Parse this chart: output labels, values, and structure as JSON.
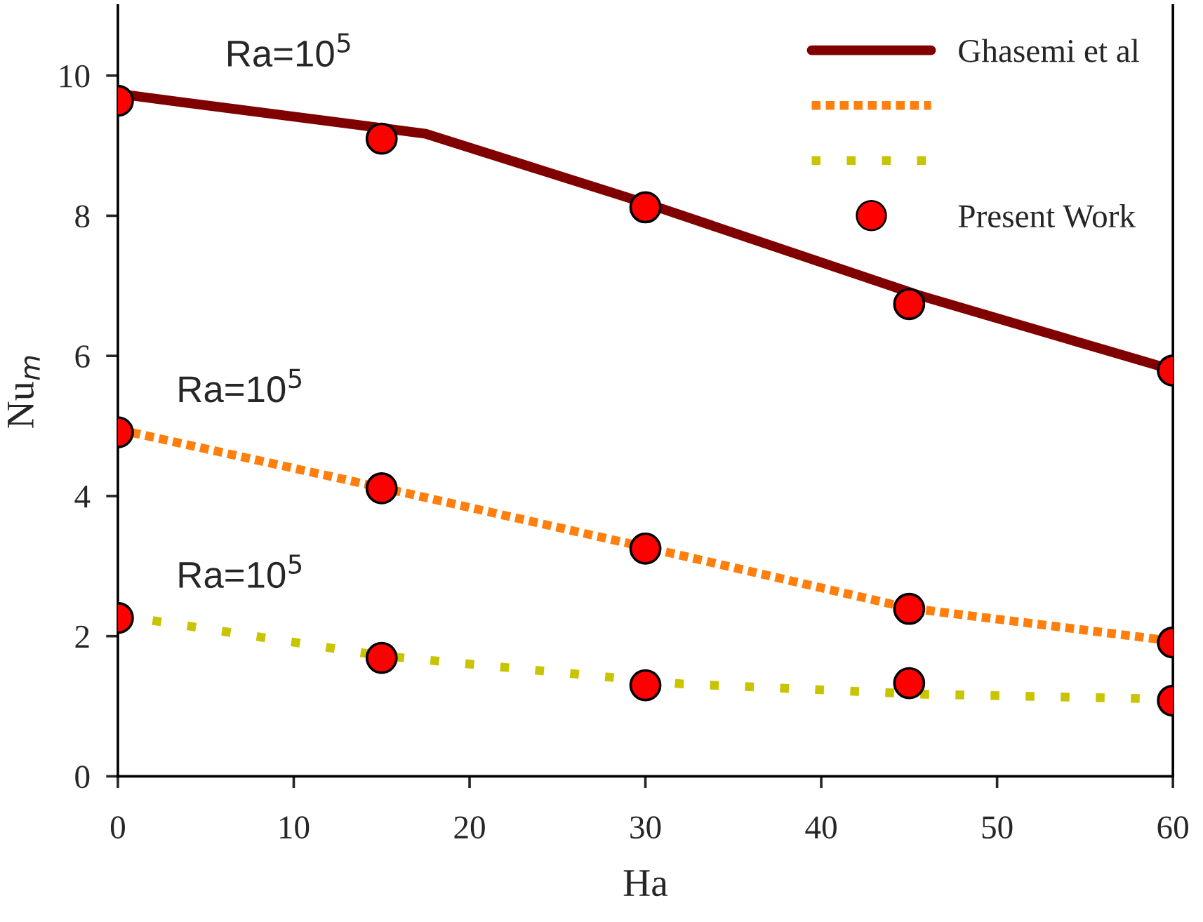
{
  "chart_data": {
    "type": "line",
    "xlabel": "Ha",
    "ylabel": "Nu$_{m}$",
    "xlim": [
      0,
      60
    ],
    "xticks": [
      0,
      10,
      20,
      30,
      40,
      50,
      60
    ],
    "ylim": [
      0,
      11
    ],
    "yticks": [
      0,
      2,
      4,
      6,
      8,
      10
    ],
    "grid": false,
    "legend": "top right",
    "series": [
      {
        "name": "Ghasemi et al",
        "color": "#800000",
        "line_style": "solid",
        "marker": "none",
        "x": [
          0,
          17.5,
          30,
          45.5,
          60
        ],
        "values": [
          9.74,
          9.17,
          8.18,
          6.87,
          5.8
        ]
      },
      {
        "color": "#ff7f0e",
        "line_style": "dashed",
        "marker": "none",
        "x": [
          0,
          15,
          30,
          45,
          60
        ],
        "values": [
          4.95,
          4.12,
          3.27,
          2.4,
          1.93
        ]
      },
      {
        "color": "#c8c400",
        "line_style": "dotted",
        "marker": "none",
        "x": [
          0,
          15,
          32,
          46,
          60
        ],
        "values": [
          2.3,
          1.72,
          1.32,
          1.17,
          1.1
        ]
      },
      {
        "name": "Present Work",
        "type": "scatter",
        "color": "#ff0000",
        "marker": "circle",
        "x": [
          0,
          15,
          30,
          45,
          60
        ],
        "values": [
          9.64,
          9.1,
          8.12,
          6.74,
          5.79
        ]
      },
      {
        "type": "scatter",
        "color": "#ff0000",
        "marker": "circle",
        "x": [
          0,
          15,
          30,
          45,
          60
        ],
        "values": [
          4.91,
          4.11,
          3.25,
          2.39,
          1.91
        ]
      },
      {
        "type": "scatter",
        "color": "#ff0000",
        "marker": "circle",
        "x": [
          0,
          15,
          30,
          45,
          60
        ],
        "values": [
          2.26,
          1.69,
          1.3,
          1.33,
          1.08
        ]
      }
    ],
    "annotations": [
      "Ra=10$^{5}$",
      "Ra=10$^{5}$",
      "Ra=10$^{5}$"
    ]
  }
}
